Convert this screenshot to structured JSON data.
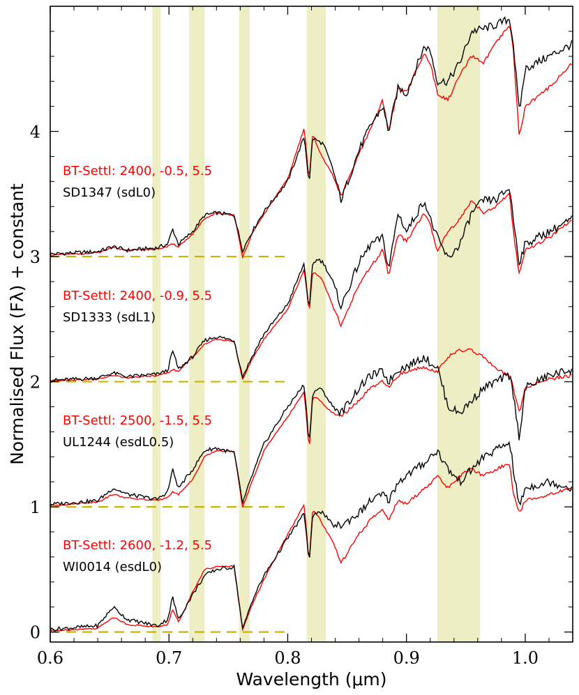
{
  "chart_data": {
    "type": "line",
    "xlabel": "Wavelength (μm)",
    "ylabel": "Normalised Flux (Fλ) + constant",
    "xlim": [
      0.6,
      1.04
    ],
    "ylim": [
      -0.08,
      5.0
    ],
    "x_ticks": [
      0.6,
      0.7,
      0.8,
      0.9,
      1.0
    ],
    "x_tick_labels": [
      "0.6",
      "0.7",
      "0.8",
      "0.9",
      "1.0"
    ],
    "y_ticks": [
      0,
      1,
      2,
      3,
      4
    ],
    "y_tick_labels": [
      "0",
      "1",
      "2",
      "3",
      "4"
    ],
    "colors": {
      "observed": "#000000",
      "model": "#ff0000",
      "band": "#eeeec4",
      "baseline": "#c8b400"
    },
    "shaded_bands": [
      [
        0.686,
        0.693
      ],
      [
        0.717,
        0.73
      ],
      [
        0.759,
        0.768
      ],
      [
        0.816,
        0.832
      ],
      [
        0.926,
        0.962
      ]
    ],
    "baseline_dash_end_x": 0.8,
    "anchors_x": [
      0.6,
      0.64,
      0.653,
      0.665,
      0.69,
      0.699,
      0.703,
      0.708,
      0.72,
      0.73,
      0.74,
      0.755,
      0.762,
      0.77,
      0.78,
      0.8,
      0.814,
      0.818,
      0.821,
      0.826,
      0.83,
      0.838,
      0.845,
      0.86,
      0.87,
      0.88,
      0.885,
      0.893,
      0.9,
      0.915,
      0.92,
      0.926,
      0.935,
      0.945,
      0.955,
      0.965,
      0.975,
      0.987,
      0.99,
      0.995,
      1.0,
      1.02,
      1.04
    ],
    "spectra": [
      {
        "object_label": "SD1347 (sdL0)",
        "model_label": "BT-Settl: 2400, -0.5, 5.5",
        "offset": 3,
        "observed": [
          3.02,
          3.04,
          3.08,
          3.05,
          3.07,
          3.1,
          3.22,
          3.1,
          3.2,
          3.33,
          3.35,
          3.33,
          3.05,
          3.2,
          3.36,
          3.6,
          3.96,
          3.58,
          3.95,
          3.92,
          3.9,
          3.7,
          3.45,
          3.85,
          4.05,
          4.2,
          4.0,
          4.35,
          4.3,
          4.68,
          4.65,
          4.4,
          4.4,
          4.55,
          4.8,
          4.82,
          4.85,
          4.9,
          4.7,
          4.15,
          4.5,
          4.6,
          4.7
        ],
        "model": [
          3.01,
          3.03,
          3.07,
          3.05,
          3.06,
          3.08,
          3.1,
          3.08,
          3.18,
          3.3,
          3.35,
          3.33,
          3.0,
          3.18,
          3.34,
          3.62,
          4.03,
          3.6,
          3.98,
          3.86,
          3.78,
          3.65,
          3.48,
          3.82,
          4.02,
          4.25,
          4.0,
          4.35,
          4.32,
          4.62,
          4.55,
          4.3,
          4.25,
          4.45,
          4.6,
          4.55,
          4.7,
          4.85,
          4.65,
          3.95,
          4.2,
          4.35,
          4.55
        ]
      },
      {
        "object_label": "SD1333 (sdL1)",
        "model_label": "BT-Settl: 2400, -0.9, 5.5",
        "offset": 2,
        "observed": [
          2.01,
          2.03,
          2.07,
          2.04,
          2.06,
          2.09,
          2.25,
          2.1,
          2.2,
          2.33,
          2.36,
          2.33,
          2.04,
          2.2,
          2.38,
          2.62,
          2.95,
          2.55,
          2.95,
          2.98,
          2.95,
          2.8,
          2.6,
          2.95,
          3.1,
          3.15,
          2.9,
          3.35,
          3.2,
          3.45,
          3.3,
          3.15,
          2.98,
          3.1,
          3.35,
          3.45,
          3.45,
          3.55,
          3.3,
          2.95,
          3.1,
          3.2,
          3.3
        ],
        "model": [
          2.01,
          2.02,
          2.05,
          2.03,
          2.05,
          2.07,
          2.1,
          2.08,
          2.2,
          2.3,
          2.34,
          2.32,
          2.02,
          2.18,
          2.34,
          2.58,
          2.9,
          2.55,
          2.88,
          2.85,
          2.8,
          2.6,
          2.45,
          2.78,
          2.92,
          3.05,
          2.85,
          3.18,
          3.12,
          3.35,
          3.25,
          3.05,
          3.2,
          3.3,
          3.45,
          3.35,
          3.4,
          3.5,
          3.2,
          2.85,
          3.05,
          3.15,
          3.3
        ]
      },
      {
        "object_label": "UL1244 (esdL0.5)",
        "model_label": "BT-Settl: 2500, -1.5, 5.5",
        "offset": 1,
        "observed": [
          1.02,
          1.05,
          1.15,
          1.1,
          1.06,
          1.12,
          1.3,
          1.15,
          1.3,
          1.45,
          1.47,
          1.43,
          1.03,
          1.25,
          1.5,
          1.8,
          1.98,
          1.5,
          1.9,
          1.95,
          1.92,
          1.8,
          1.75,
          1.95,
          2.05,
          2.08,
          2.0,
          2.1,
          2.12,
          2.2,
          2.15,
          2.12,
          1.8,
          1.75,
          1.85,
          1.95,
          2.0,
          2.05,
          1.9,
          1.55,
          1.95,
          2.05,
          2.1
        ],
        "model": [
          1.01,
          1.04,
          1.1,
          1.07,
          1.05,
          1.08,
          1.12,
          1.1,
          1.22,
          1.4,
          1.45,
          1.44,
          1.0,
          1.2,
          1.45,
          1.72,
          1.92,
          1.45,
          1.88,
          1.86,
          1.82,
          1.75,
          1.72,
          1.85,
          1.95,
          2.0,
          1.95,
          2.05,
          2.08,
          2.12,
          2.1,
          2.08,
          2.2,
          2.25,
          2.25,
          2.2,
          2.1,
          2.05,
          1.95,
          1.75,
          1.95,
          2.02,
          2.05
        ]
      },
      {
        "object_label": "WI0014 (esdL0)",
        "model_label": "BT-Settl: 2600, -1.2, 5.5",
        "offset": 0,
        "observed": [
          0.02,
          0.05,
          0.2,
          0.1,
          0.05,
          0.1,
          0.28,
          0.1,
          0.3,
          0.45,
          0.5,
          0.52,
          0.02,
          0.25,
          0.45,
          0.75,
          0.95,
          0.55,
          0.92,
          0.97,
          0.95,
          0.85,
          0.85,
          0.95,
          1.05,
          1.1,
          1.05,
          1.2,
          1.25,
          1.35,
          1.4,
          1.45,
          1.3,
          1.2,
          1.3,
          1.4,
          1.45,
          1.52,
          1.3,
          1.0,
          1.15,
          1.2,
          1.15
        ],
        "model": [
          0.01,
          0.03,
          0.12,
          0.06,
          0.04,
          0.06,
          0.18,
          0.08,
          0.32,
          0.5,
          0.52,
          0.53,
          0.02,
          0.22,
          0.42,
          0.78,
          1.02,
          0.55,
          0.98,
          0.92,
          0.85,
          0.72,
          0.55,
          0.78,
          0.9,
          0.98,
          0.9,
          1.05,
          1.02,
          1.15,
          1.18,
          1.25,
          1.15,
          1.25,
          1.3,
          1.25,
          1.3,
          1.35,
          1.1,
          0.95,
          1.05,
          1.1,
          1.15
        ]
      }
    ]
  }
}
